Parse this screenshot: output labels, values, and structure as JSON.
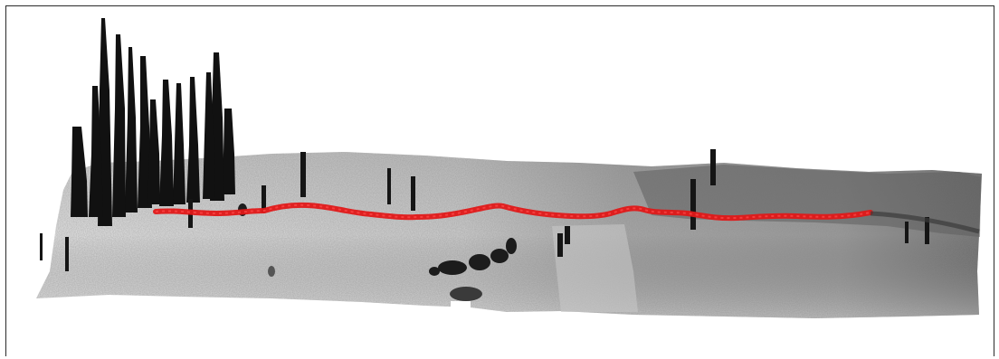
{
  "image": {
    "subject": "lidar-point-cloud",
    "palette": {
      "background": "#ffffff",
      "frame": "#2a2a2a",
      "terrain_light": "#e6e6e6",
      "terrain_mid": "#bdbdbd",
      "terrain_dark": "#7a7a7a",
      "trees": "#111111",
      "trajectory": "#e01818"
    }
  }
}
